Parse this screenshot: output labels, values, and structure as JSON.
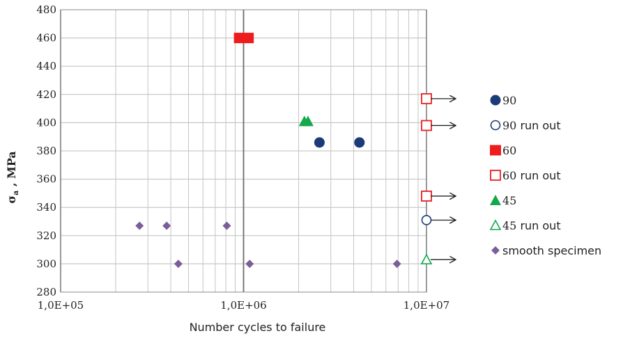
{
  "chart_data": {
    "type": "scatter",
    "xlabel": "Number cycles to failure",
    "ylabel_main": "σ",
    "ylabel_sub": "a",
    "ylabel_rest": " , MPa",
    "xscale": "log",
    "xlim": [
      100000,
      10000000
    ],
    "ylim": [
      280,
      480
    ],
    "xticks": [
      100000,
      1000000,
      10000000
    ],
    "xtick_labels": [
      "1,0E+05",
      "1,0E+06",
      "1,0E+07"
    ],
    "yticks": [
      280,
      300,
      320,
      340,
      360,
      380,
      400,
      420,
      440,
      460,
      480
    ],
    "ytick_labels": [
      "280",
      "300",
      "320",
      "340",
      "360",
      "380",
      "400",
      "420",
      "440",
      "460",
      "480"
    ],
    "grid": true,
    "legend_position": "right",
    "series": [
      {
        "name": "90",
        "marker": "circle-filled",
        "color": "#1a3a78",
        "points": [
          [
            2600000,
            386
          ],
          [
            4300000,
            386
          ]
        ]
      },
      {
        "name": "90 run out",
        "marker": "circle-open",
        "color": "#1a3a78",
        "points": [
          [
            10000000,
            331
          ]
        ]
      },
      {
        "name": "60",
        "marker": "square-filled",
        "color": "#ee1c1c",
        "points": [
          [
            950000,
            460
          ],
          [
            1060000,
            460
          ]
        ]
      },
      {
        "name": "60  run out",
        "marker": "square-open",
        "color": "#ee1c1c",
        "points": [
          [
            10000000,
            417
          ],
          [
            10000000,
            398
          ],
          [
            10000000,
            348
          ]
        ]
      },
      {
        "name": "45",
        "marker": "triangle-filled",
        "color": "#13a84b",
        "points": [
          [
            2150000,
            401
          ],
          [
            2250000,
            401
          ]
        ]
      },
      {
        "name": "45  run out",
        "marker": "triangle-open",
        "color": "#13a84b",
        "points": [
          [
            10000000,
            303
          ]
        ]
      },
      {
        "name": "smooth specimen",
        "marker": "diamond-filled",
        "color": "#7b5e98",
        "points": [
          [
            270000,
            327
          ],
          [
            380000,
            327
          ],
          [
            810000,
            327
          ],
          [
            440000,
            300
          ],
          [
            1080000,
            300
          ],
          [
            6900000,
            300
          ]
        ]
      }
    ],
    "runout_arrow_levels": [
      417,
      398,
      348,
      331,
      303
    ]
  }
}
